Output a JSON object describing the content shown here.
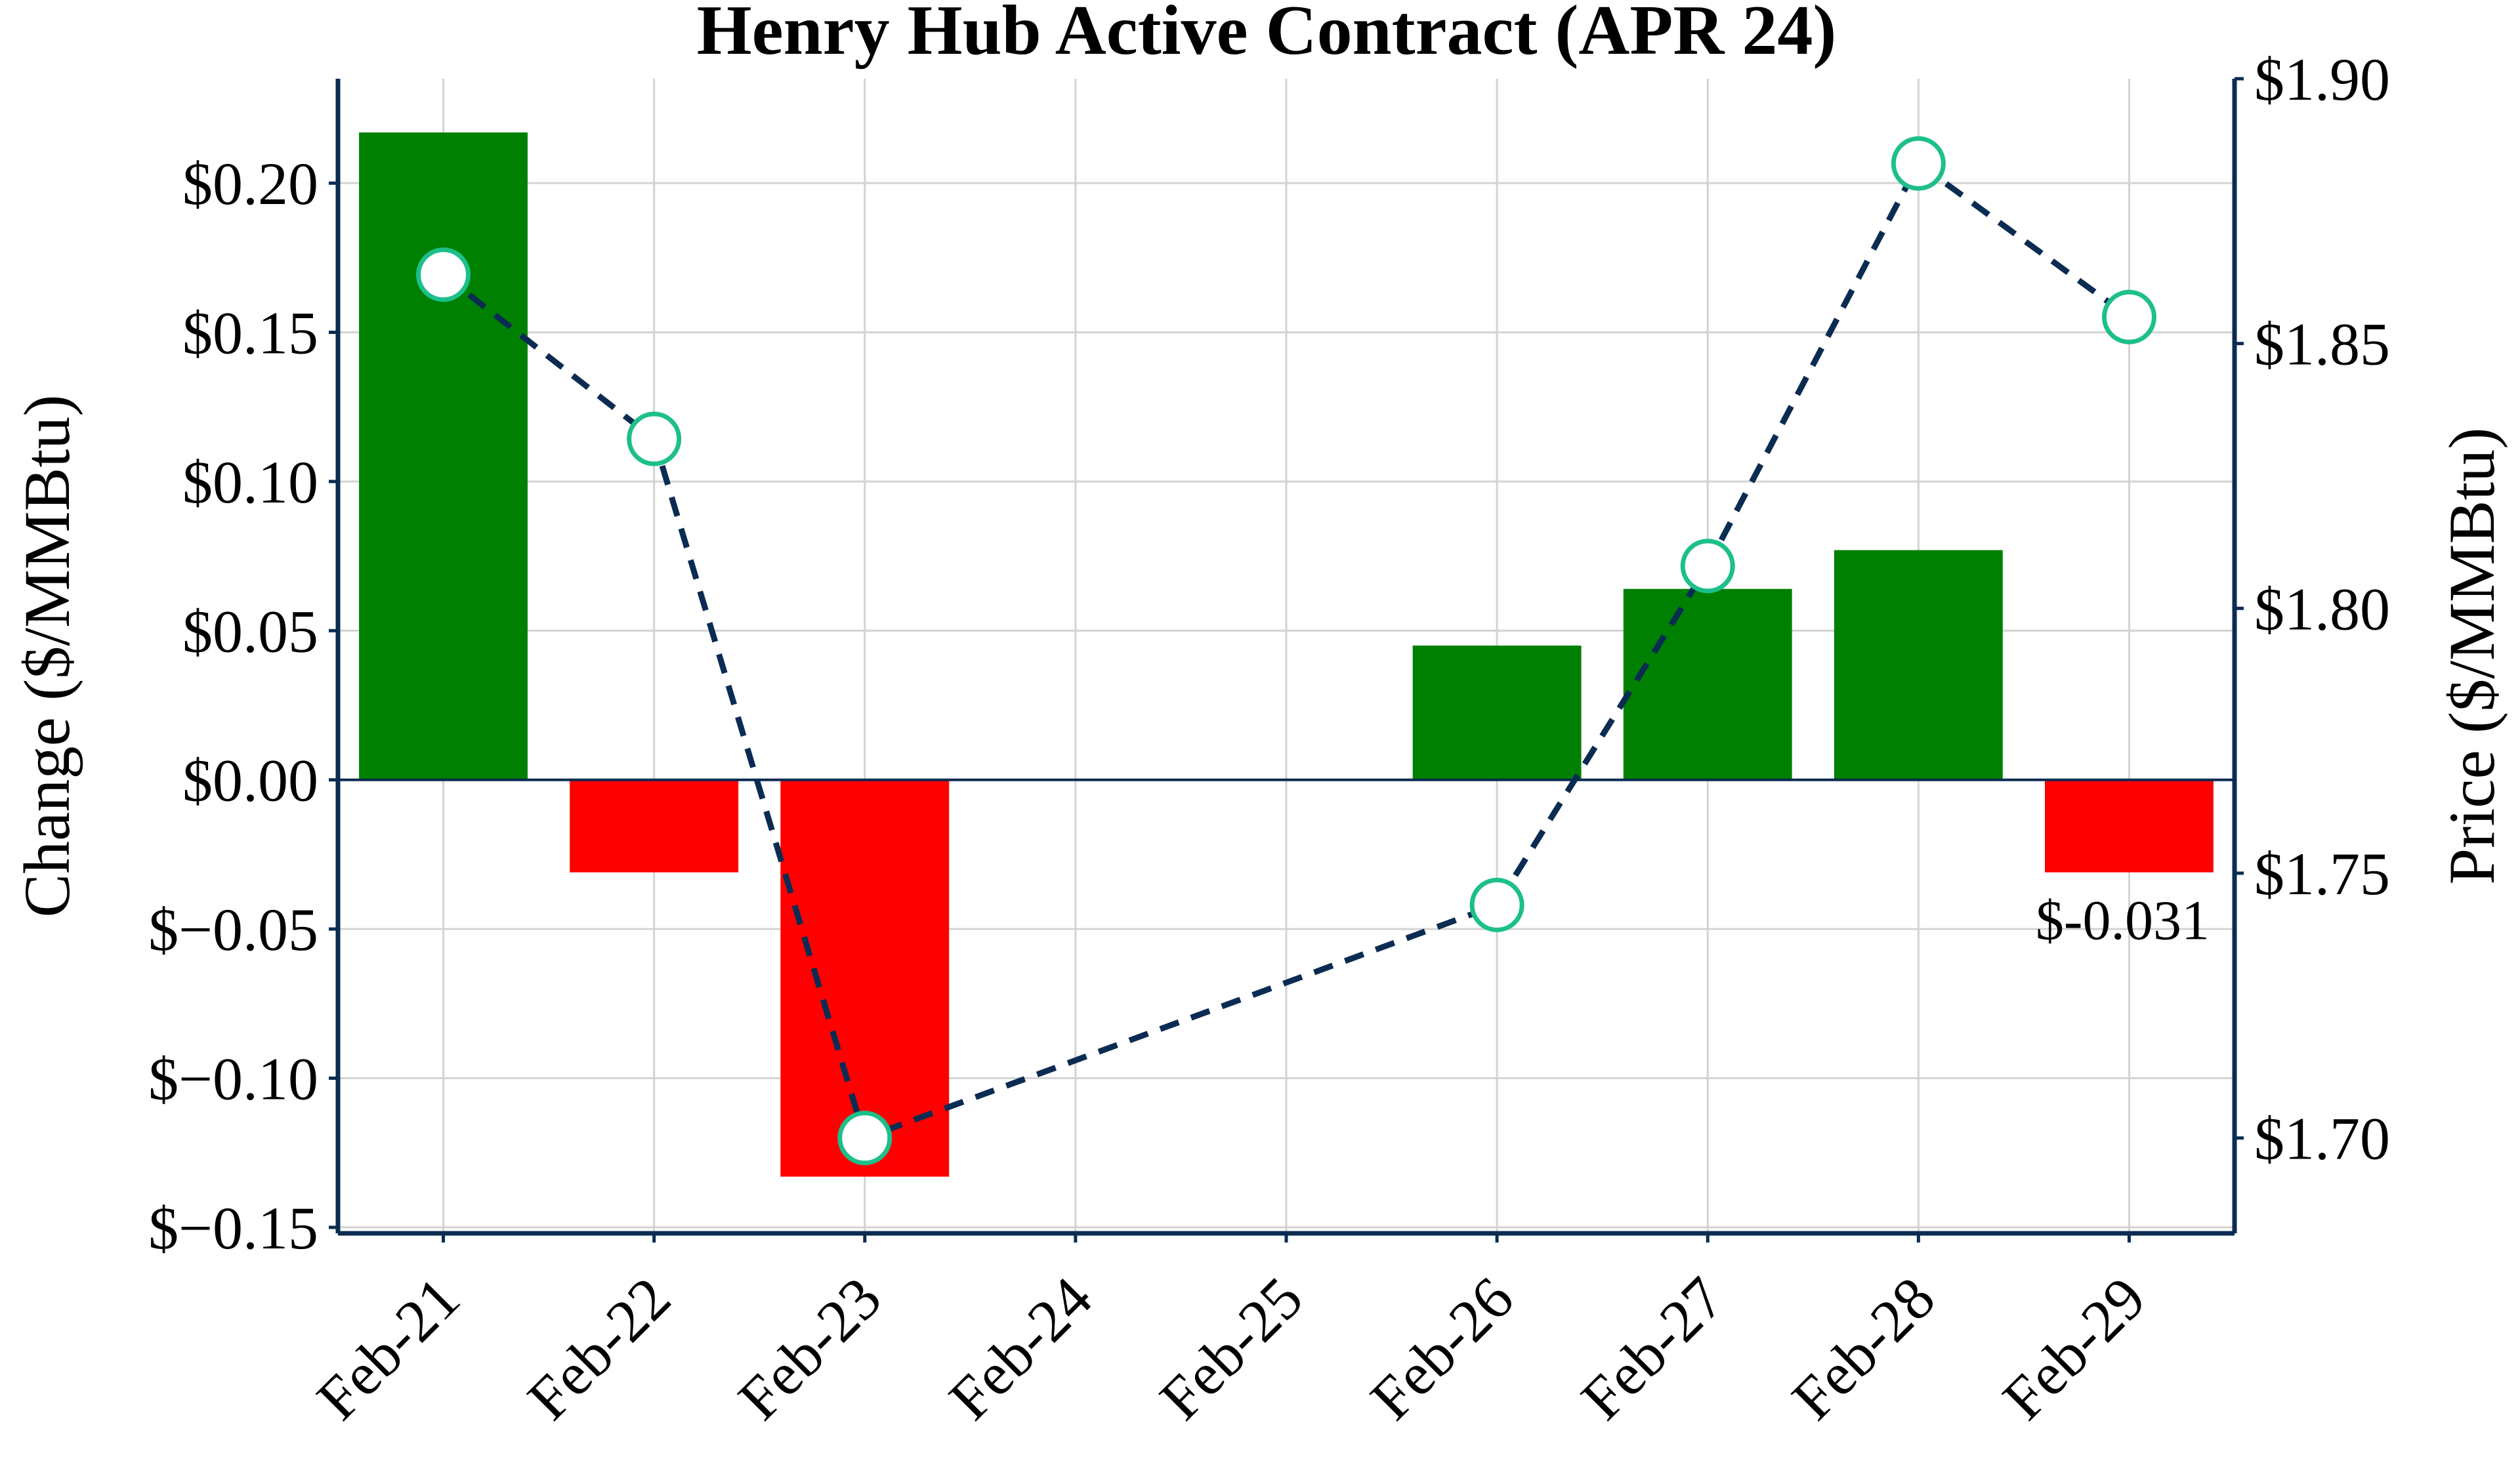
{
  "chart_data": {
    "type": "bar",
    "title": "Henry Hub Active Contract (APR 24)",
    "xlabel": "",
    "y_left_label": "Change ($/MMBtu)",
    "y_right_label": "Price ($/MMBtu)",
    "categories": [
      "Feb-21",
      "Feb-22",
      "Feb-23",
      "Feb-24",
      "Feb-25",
      "Feb-26",
      "Feb-27",
      "Feb-28",
      "Feb-29"
    ],
    "series": [
      {
        "type": "bar",
        "axis": "left",
        "values": [
          0.217,
          -0.031,
          -0.133,
          null,
          null,
          0.045,
          0.064,
          0.077,
          -0.031
        ]
      },
      {
        "type": "line",
        "axis": "right",
        "style": "dashed",
        "values": [
          1.863,
          1.832,
          1.7,
          null,
          null,
          1.744,
          1.808,
          1.884,
          1.855
        ]
      }
    ],
    "y_left_lim": [
      -0.152,
      0.235
    ],
    "y_left_ticks": [
      0.2,
      0.15,
      0.1,
      0.05,
      0.0,
      -0.05,
      -0.1,
      -0.15
    ],
    "y_left_tick_labels": [
      "$0.20",
      "$0.15",
      "$0.10",
      "$0.05",
      "$0.00",
      "$−0.05",
      "$−0.10",
      "$−0.15"
    ],
    "y_right_lim": [
      1.682,
      1.9
    ],
    "y_right_ticks": [
      1.9,
      1.85,
      1.8,
      1.75,
      1.7
    ],
    "y_right_tick_labels": [
      "$1.90",
      "$1.85",
      "$1.80",
      "$1.75",
      "$1.70"
    ],
    "annotations": [
      {
        "category_index": 8,
        "text": "$-0.031"
      }
    ],
    "grid": true,
    "colors": {
      "positive": "#008000",
      "negative": "#ff0000",
      "line": "#0b2c52",
      "marker_edge": "#1dbf8a",
      "axis": "#0b2c52",
      "grid": "#d3d3d3"
    }
  }
}
